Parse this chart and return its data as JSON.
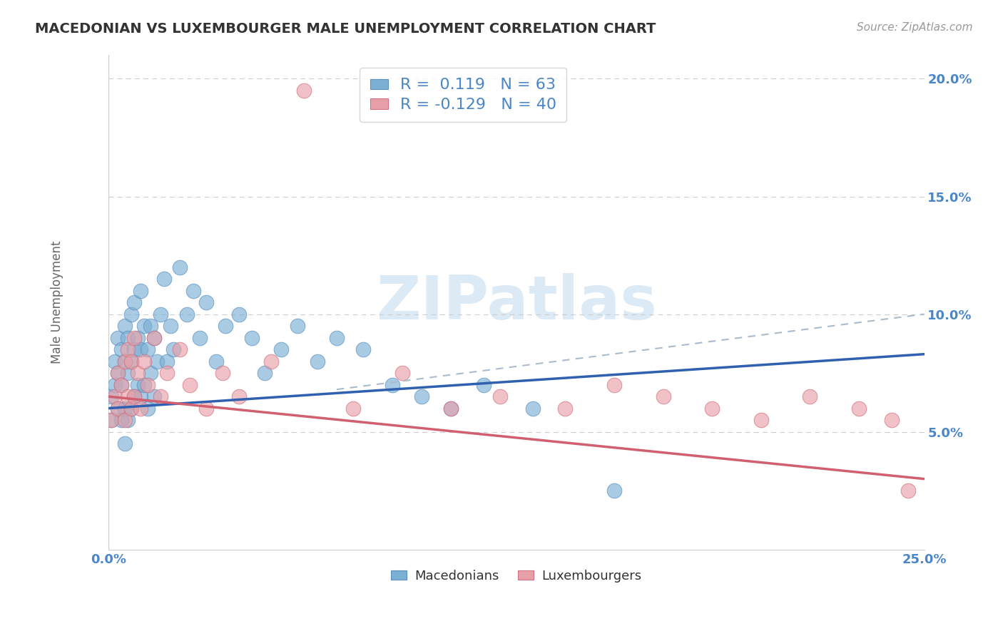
{
  "title": "MACEDONIAN VS LUXEMBOURGER MALE UNEMPLOYMENT CORRELATION CHART",
  "source": "Source: ZipAtlas.com",
  "ylabel": "Male Unemployment",
  "xlim": [
    0.0,
    0.25
  ],
  "ylim": [
    0.0,
    0.21
  ],
  "macedonian_color": "#7bafd4",
  "macedonian_edge_color": "#5a8fc0",
  "luxembourger_color": "#e8a0a8",
  "luxembourger_edge_color": "#d07080",
  "macedonian_R": 0.119,
  "macedonian_N": 63,
  "luxembourger_R": -0.129,
  "luxembourger_N": 40,
  "legend_R_color": "#4a86c8",
  "trend_blue_color": "#3060b0",
  "trend_pink_color": "#d06070",
  "trend_dashed_color": "#aabbcc",
  "watermark_color": "#d8e8f4",
  "background_color": "#ffffff",
  "macedonians_x": [
    0.001,
    0.001,
    0.002,
    0.002,
    0.003,
    0.003,
    0.003,
    0.004,
    0.004,
    0.004,
    0.005,
    0.005,
    0.005,
    0.005,
    0.006,
    0.006,
    0.006,
    0.007,
    0.007,
    0.007,
    0.008,
    0.008,
    0.008,
    0.009,
    0.009,
    0.01,
    0.01,
    0.01,
    0.011,
    0.011,
    0.012,
    0.012,
    0.013,
    0.013,
    0.014,
    0.014,
    0.015,
    0.016,
    0.017,
    0.018,
    0.019,
    0.02,
    0.022,
    0.024,
    0.026,
    0.028,
    0.03,
    0.033,
    0.036,
    0.04,
    0.044,
    0.048,
    0.053,
    0.058,
    0.064,
    0.07,
    0.078,
    0.087,
    0.096,
    0.105,
    0.115,
    0.13,
    0.155
  ],
  "macedonians_y": [
    0.065,
    0.055,
    0.07,
    0.08,
    0.06,
    0.075,
    0.09,
    0.055,
    0.07,
    0.085,
    0.045,
    0.06,
    0.08,
    0.095,
    0.055,
    0.075,
    0.09,
    0.06,
    0.08,
    0.1,
    0.065,
    0.085,
    0.105,
    0.07,
    0.09,
    0.065,
    0.085,
    0.11,
    0.07,
    0.095,
    0.06,
    0.085,
    0.075,
    0.095,
    0.065,
    0.09,
    0.08,
    0.1,
    0.115,
    0.08,
    0.095,
    0.085,
    0.12,
    0.1,
    0.11,
    0.09,
    0.105,
    0.08,
    0.095,
    0.1,
    0.09,
    0.075,
    0.085,
    0.095,
    0.08,
    0.09,
    0.085,
    0.07,
    0.065,
    0.06,
    0.07,
    0.06,
    0.025
  ],
  "luxembourgers_x": [
    0.001,
    0.002,
    0.003,
    0.003,
    0.004,
    0.005,
    0.005,
    0.006,
    0.006,
    0.007,
    0.007,
    0.008,
    0.008,
    0.009,
    0.01,
    0.011,
    0.012,
    0.014,
    0.016,
    0.018,
    0.022,
    0.025,
    0.03,
    0.035,
    0.04,
    0.05,
    0.06,
    0.075,
    0.09,
    0.105,
    0.12,
    0.14,
    0.155,
    0.17,
    0.185,
    0.2,
    0.215,
    0.23,
    0.24,
    0.245
  ],
  "luxembourgers_y": [
    0.055,
    0.065,
    0.06,
    0.075,
    0.07,
    0.055,
    0.08,
    0.065,
    0.085,
    0.06,
    0.08,
    0.065,
    0.09,
    0.075,
    0.06,
    0.08,
    0.07,
    0.09,
    0.065,
    0.075,
    0.085,
    0.07,
    0.06,
    0.075,
    0.065,
    0.08,
    0.195,
    0.06,
    0.075,
    0.06,
    0.065,
    0.06,
    0.07,
    0.065,
    0.06,
    0.055,
    0.065,
    0.06,
    0.055,
    0.025
  ],
  "blue_trend_x0": 0.0,
  "blue_trend_y0": 0.06,
  "blue_trend_x1": 0.25,
  "blue_trend_y1": 0.083,
  "pink_trend_x0": 0.0,
  "pink_trend_y0": 0.065,
  "pink_trend_x1": 0.25,
  "pink_trend_y1": 0.03,
  "dashed_trend_x0": 0.07,
  "dashed_trend_y0": 0.068,
  "dashed_trend_x1": 0.25,
  "dashed_trend_y1": 0.1
}
